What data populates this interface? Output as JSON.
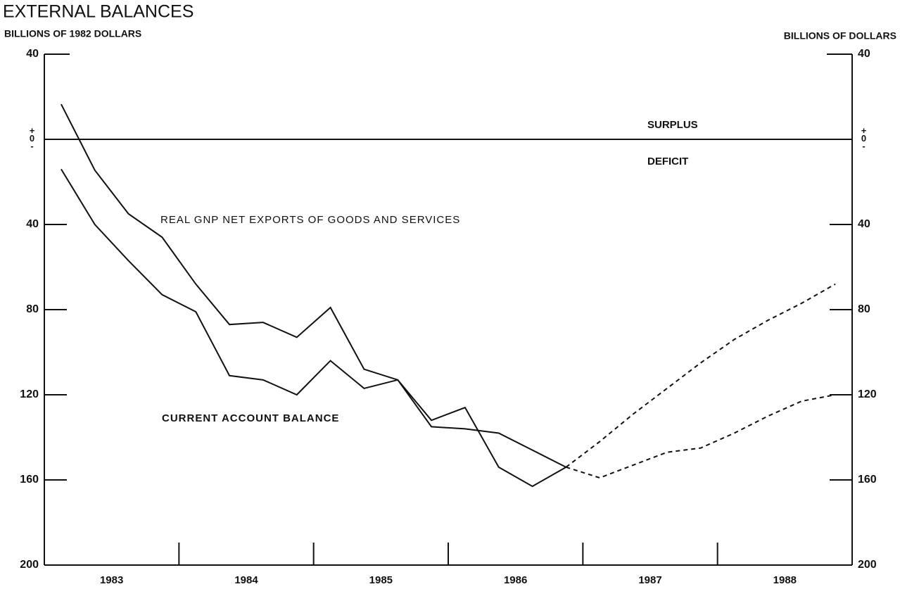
{
  "chart_data": {
    "type": "line",
    "title": "EXTERNAL BALANCES",
    "y_label": "BILLIONS OF 1982 DOLLARS",
    "y2_label": "BILLIONS OF DOLLARS",
    "annotations": {
      "surplus": "SURPLUS",
      "deficit": "DEFICIT",
      "net_exports": "REAL GNP NET EXPORTS OF GOODS AND SERVICES",
      "current_account": "CURRENT ACCOUNT BALANCE"
    },
    "categories": [
      "1983",
      "1984",
      "1985",
      "1986",
      "1987",
      "1988"
    ],
    "x": [
      1983.125,
      1983.375,
      1983.625,
      1983.875,
      1984.125,
      1984.375,
      1984.625,
      1984.875,
      1985.125,
      1985.375,
      1985.625,
      1985.875,
      1986.125,
      1986.375,
      1986.625,
      1986.875,
      1987.125,
      1987.375,
      1987.625,
      1987.875,
      1988.125,
      1988.375,
      1988.625,
      1988.875
    ],
    "xlim": [
      1983,
      1989
    ],
    "xticks": [
      1984,
      1985,
      1986,
      1987,
      1988
    ],
    "ylim": [
      -200,
      40
    ],
    "yticks": [
      {
        "value": 40,
        "label": "40"
      },
      {
        "value": 0,
        "label": "+0-"
      },
      {
        "value": -40,
        "label": "40"
      },
      {
        "value": -80,
        "label": "80"
      },
      {
        "value": -120,
        "label": "120"
      },
      {
        "value": -160,
        "label": "160"
      },
      {
        "value": -200,
        "label": "200"
      }
    ],
    "y2lim": [
      -200,
      40
    ],
    "y2ticks": [
      {
        "value": 40,
        "label": "40"
      },
      {
        "value": 0,
        "label": "+0-"
      },
      {
        "value": -40,
        "label": "40"
      },
      {
        "value": -80,
        "label": "80"
      },
      {
        "value": -120,
        "label": "120"
      },
      {
        "value": -160,
        "label": "160"
      },
      {
        "value": -200,
        "label": "200"
      }
    ],
    "series": [
      {
        "name": "REAL GNP NET EXPORTS OF GOODS AND SERVICES",
        "color": "#111111",
        "style": "solid",
        "axis": "y",
        "values": [
          16.5,
          -14.5,
          -35,
          -46,
          -68,
          -87,
          -86,
          -93,
          -79,
          -108,
          -113,
          -132,
          -126,
          -154,
          -163,
          -154,
          null,
          null,
          null,
          null,
          null,
          null,
          null,
          null
        ]
      },
      {
        "color": "#111111",
        "style": "dashed",
        "axis": "y",
        "values": [
          null,
          null,
          null,
          null,
          null,
          null,
          null,
          null,
          null,
          null,
          null,
          null,
          null,
          null,
          null,
          -154,
          -142,
          -129,
          -117,
          -105,
          -94,
          -85,
          -77,
          -68
        ]
      },
      {
        "name": "CURRENT ACCOUNT BALANCE",
        "color": "#111111",
        "style": "solid",
        "axis": "y2",
        "values": [
          -14,
          -40,
          -57,
          -73,
          -81,
          -111,
          -113,
          -120,
          -104,
          -117,
          -113,
          -135,
          -136,
          -138,
          -146,
          -154,
          null,
          null,
          null,
          null,
          null,
          null,
          null,
          null
        ]
      },
      {
        "color": "#111111",
        "style": "dashed",
        "axis": "y2",
        "values": [
          null,
          null,
          null,
          null,
          null,
          null,
          null,
          null,
          null,
          null,
          null,
          null,
          null,
          null,
          null,
          -154,
          -159,
          -153,
          -147,
          -145,
          -138,
          -130,
          -123,
          -120
        ]
      }
    ]
  }
}
